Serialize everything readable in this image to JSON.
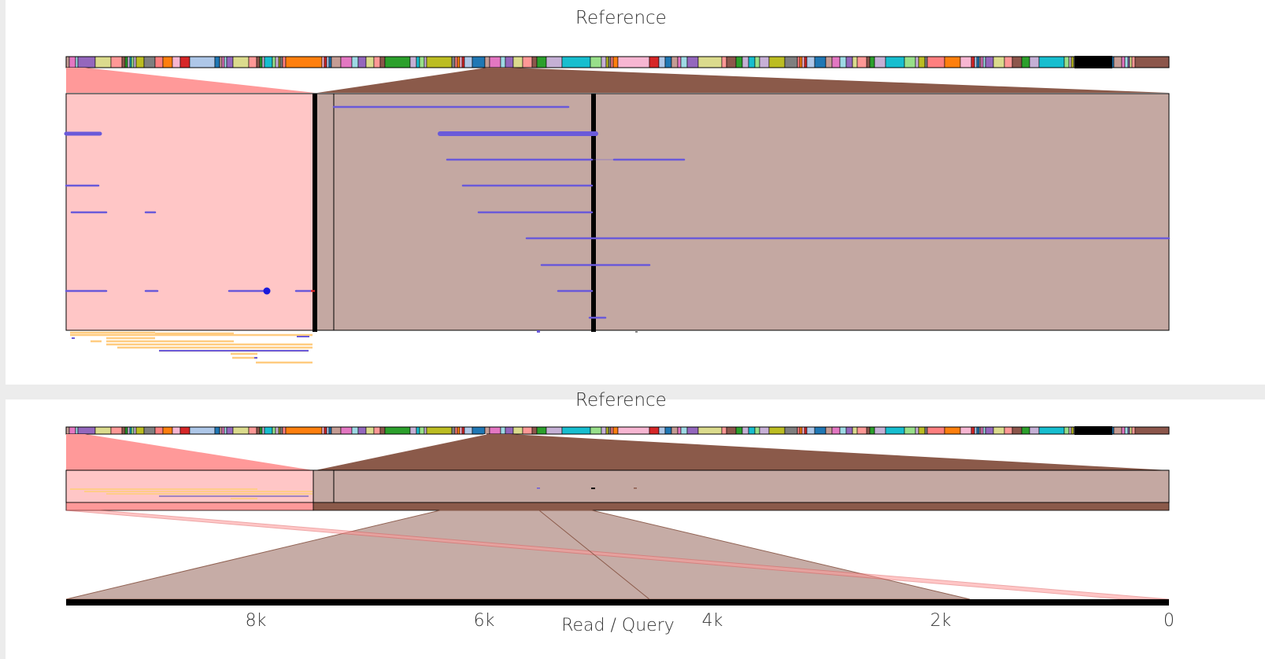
{
  "top_panel": {
    "title": "Reference"
  },
  "bottom_panel": {
    "title": "Reference",
    "axis_title": "Read / Query",
    "x_ticks": [
      "8k",
      "6k",
      "4k",
      "2k",
      "0"
    ]
  },
  "colors": {
    "pink_fill": "#ffc6c6",
    "pink_dark": "#ff9999",
    "brown_fill": "#c4a8a2",
    "brown_dark": "#8b5a4a",
    "read_line": "#6a5ad9",
    "secondary_read": "#ffcc80",
    "accent_dot": "#1a1adb",
    "black": "#000000"
  },
  "reference_bar_colors": [
    "#c7b0d6",
    "#ff7f7f",
    "#d62728",
    "#c49c94",
    "#9467bd",
    "#8c564b",
    "#17becf",
    "#bcbd22",
    "#ff7f0e",
    "#aec7e8",
    "#e377c2",
    "#dbdb8d",
    "#2ca02c",
    "#98df8a",
    "#7f7f7f",
    "#f7b6d2",
    "#1f77b4",
    "#9edae5",
    "#ff9896",
    "#c5b0d5"
  ]
}
